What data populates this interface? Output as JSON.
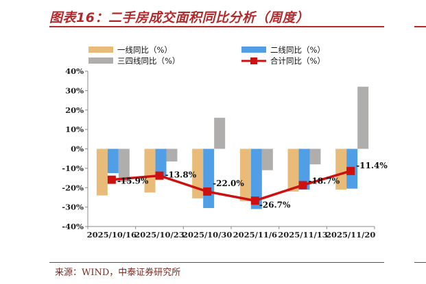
{
  "figure": {
    "title": "图表16：二手房成交面积同比分析（周度）",
    "source": "来源：WIND，中泰证券研究所"
  },
  "colors": {
    "tier1": "#e8bc78",
    "tier2": "#4f9ee6",
    "tier34": "#b0adad",
    "total": "#cc1111",
    "axis": "#888888",
    "brand": "#b5282a"
  },
  "chart_data": {
    "type": "bar",
    "categories": [
      "2025/10/16",
      "2025/10/23",
      "2025/10/30",
      "2025/11/6",
      "2025/11/13",
      "2025/11/20"
    ],
    "ylim": [
      -40,
      40
    ],
    "yticks": [
      "40%",
      "30%",
      "20%",
      "10%",
      "0%",
      "-10%",
      "-20%",
      "-30%",
      "-40%"
    ],
    "ytick_values": [
      40,
      30,
      20,
      10,
      0,
      -10,
      -20,
      -30,
      -40
    ],
    "grid": false,
    "legend_position": "top",
    "series": [
      {
        "name": "一线同比（%）",
        "kind": "bar",
        "values": [
          -24,
          -22.5,
          -25.5,
          -27,
          -22,
          -21
        ]
      },
      {
        "name": "二线同比（%）",
        "kind": "bar",
        "values": [
          -12.5,
          -14.5,
          -30.5,
          -31,
          -21,
          -20.5
        ]
      },
      {
        "name": "三四线同比（%）",
        "kind": "bar",
        "values": [
          -17,
          -6.5,
          16,
          -11,
          -8,
          32
        ]
      },
      {
        "name": "合计同比（%）",
        "kind": "line",
        "values": [
          -15.9,
          -13.8,
          -22.0,
          -26.7,
          -18.7,
          -11.4
        ],
        "labels": [
          "-15.9%",
          "-13.8%",
          "-22.0%",
          "-26.7%",
          "-18.7%",
          "-11.4%"
        ]
      }
    ]
  }
}
